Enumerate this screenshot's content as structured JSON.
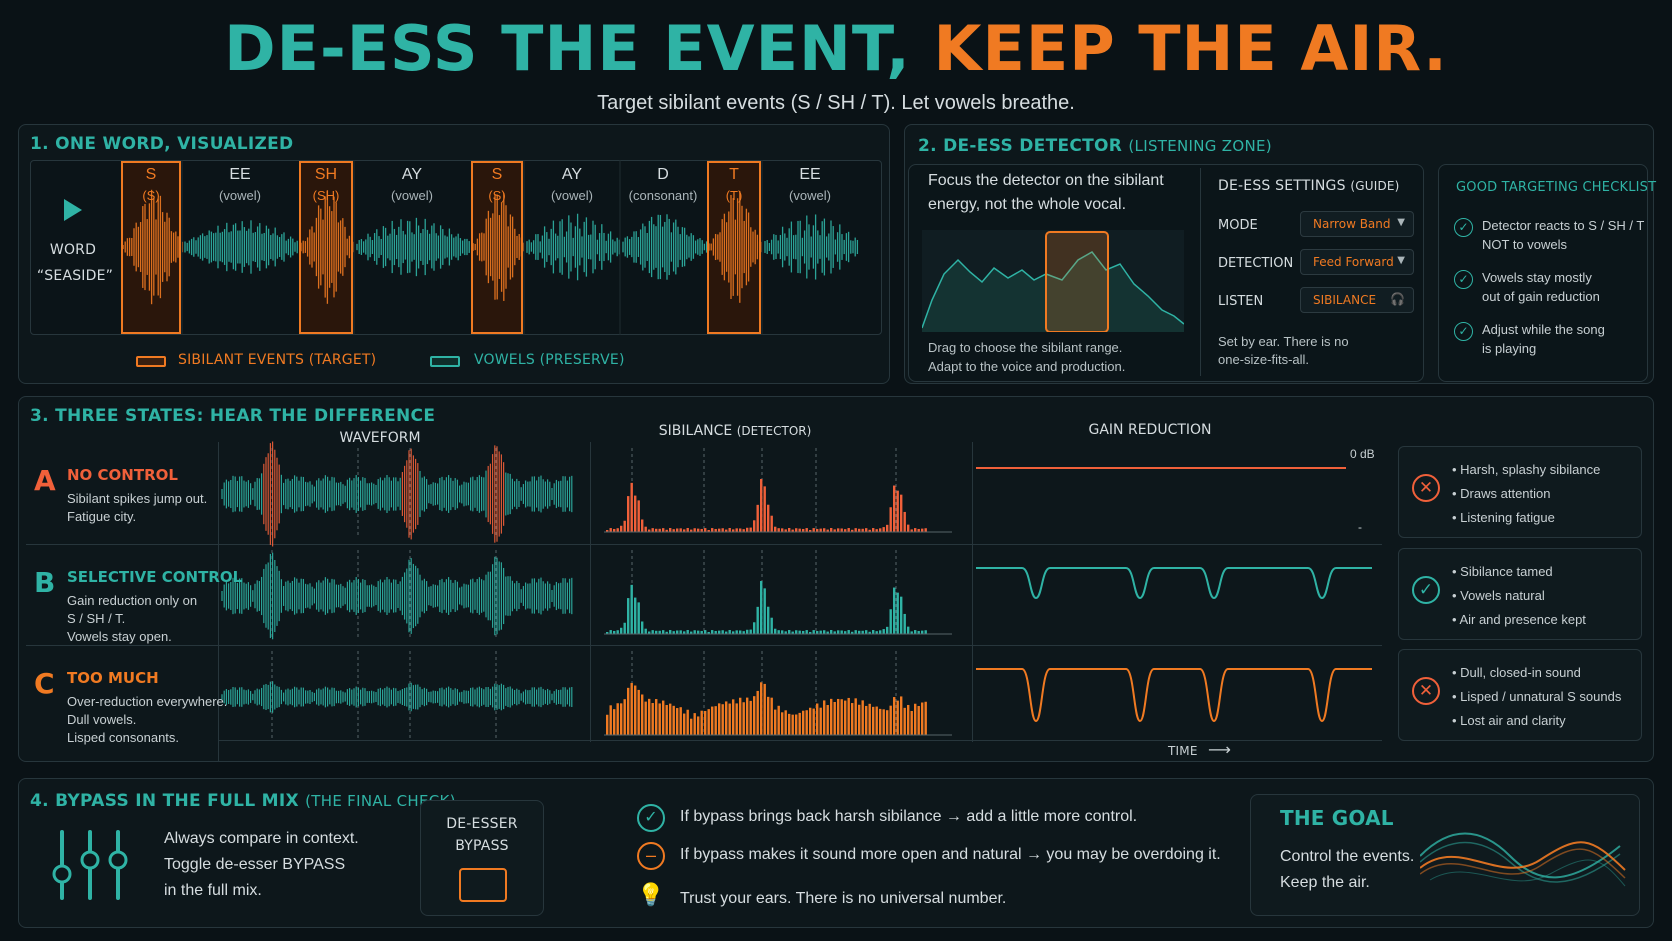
{
  "title": {
    "part1": "DE-ESS THE EVENT,",
    "part2": "KEEP THE AIR."
  },
  "subtitle": "Target sibilant events  (S / SH / T).  Let vowels breathe.",
  "section1": {
    "title": "1. ONE WORD, VISUALIZED",
    "word_label": "WORD",
    "word": "“SEASIDE”",
    "segments": [
      {
        "top": "S",
        "bottom": "(S)",
        "type": "sibilant"
      },
      {
        "top": "EE",
        "bottom": "(vowel)",
        "type": "vowel"
      },
      {
        "top": "SH",
        "bottom": "(SH)",
        "type": "sibilant"
      },
      {
        "top": "AY",
        "bottom": "(vowel)",
        "type": "vowel"
      },
      {
        "top": "S",
        "bottom": "(S)",
        "type": "sibilant"
      },
      {
        "top": "AY",
        "bottom": "(vowel)",
        "type": "vowel"
      },
      {
        "top": "D",
        "bottom": "(consonant)",
        "type": "consonant"
      },
      {
        "top": "T",
        "bottom": "(T)",
        "type": "sibilant"
      },
      {
        "top": "EE",
        "bottom": "(vowel)",
        "type": "vowel"
      }
    ],
    "legend_sibilant": "SIBILANT EVENTS (TARGET)",
    "legend_vowel": "VOWELS  (PRESERVE)"
  },
  "section2": {
    "title": "2. DE-ESS DETECTOR",
    "title_sub": "(LISTENING ZONE)",
    "focus_line1": "Focus the detector on the sibilant",
    "focus_line2": "energy, not the whole vocal.",
    "drag_line1": "Drag to choose the sibilant range.",
    "drag_line2": "Adapt to the voice and production.",
    "settings_title": "DE-ESS SETTINGS",
    "settings_sub": "(GUIDE)",
    "mode_label": "MODE",
    "mode_value": "Narrow Band",
    "detection_label": "DETECTION",
    "detection_value": "Feed Forward",
    "listen_label": "LISTEN",
    "listen_value": "SIBILANCE",
    "setbyear_line1": "Set by ear. There is no",
    "setbyear_line2": "one-size-fits-all.",
    "checklist_title": "GOOD TARGETING CHECKLIST",
    "checklist": [
      {
        "l1": "Detector reacts to S / SH / T",
        "l2": "NOT to vowels"
      },
      {
        "l1": "Vowels stay mostly",
        "l2": "out of gain reduction"
      },
      {
        "l1": "Adjust while the song",
        "l2": "is playing"
      }
    ]
  },
  "section3": {
    "title": "3. THREE STATES: HEAR THE DIFFERENCE",
    "col_waveform": "WAVEFORM",
    "col_sibilance": "SIBILANCE",
    "col_sibilance_sub": "(DETECTOR)",
    "col_gain": "GAIN REDUCTION",
    "zero_db": "0 dB",
    "minus": "-",
    "time_label": "TIME",
    "rows": [
      {
        "letter": "A",
        "name": "NO CONTROL",
        "d1": "Sibilant spikes jump out.",
        "d2": "Fatigue city.",
        "d3": "",
        "bullets": [
          "Harsh, splashy sibilance",
          "Draws attention",
          "Listening fatigue"
        ],
        "status": "bad",
        "color": "#f0603a"
      },
      {
        "letter": "B",
        "name": "SELECTIVE CONTROL",
        "d1": "Gain reduction only on",
        "d2": "S / SH / T.",
        "d3": "Vowels stay open.",
        "bullets": [
          "Sibilance tamed",
          "Vowels natural",
          "Air and presence kept"
        ],
        "status": "good",
        "color": "#2fb3a5"
      },
      {
        "letter": "C",
        "name": "TOO MUCH",
        "d1": "Over-reduction everywhere.",
        "d2": "Dull vowels.",
        "d3": "Lisped consonants.",
        "bullets": [
          "Dull, closed-in sound",
          "Lisped / unnatural S sounds",
          "Lost air and clarity"
        ],
        "status": "bad",
        "color": "#f07a22"
      }
    ]
  },
  "section4": {
    "title": "4. BYPASS IN THE FULL MIX",
    "title_sub": "(THE FINAL CHECK)",
    "compare_l1": "Always compare in context.",
    "compare_l2": "Toggle de-esser BYPASS",
    "compare_l3": "in the full mix.",
    "bypass_l1": "DE-ESSER",
    "bypass_l2": "BYPASS",
    "line1": "If bypass brings back harsh sibilance → add a little more control.",
    "line2": "If bypass makes it sound more open and natural → you may be overdoing it.",
    "line3": "Trust your ears.  There is no universal number.",
    "goal_title": "THE GOAL",
    "goal_l1": "Control the events.",
    "goal_l2": "Keep the air."
  },
  "colors": {
    "teal": "#2fb3a5",
    "orange": "#f07a22",
    "red": "#f0603a",
    "bg": "#0a1216"
  }
}
